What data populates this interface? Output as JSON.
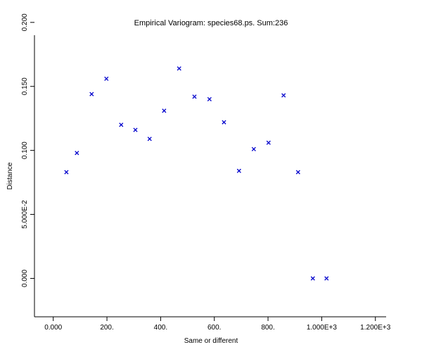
{
  "chart_data": {
    "type": "scatter",
    "title": "Empirical Variogram: species68.ps. Sum:236",
    "xlabel": "Same or different",
    "ylabel": "Distance",
    "xlim": [
      -70,
      1240
    ],
    "ylim": [
      -0.03,
      0.19
    ],
    "x_ticks": [
      0,
      200,
      400,
      600,
      800,
      1000,
      1200
    ],
    "x_tick_labels": [
      "0.000",
      "200.",
      "400.",
      "600.",
      "800.",
      "1.000E+3",
      "1.200E+3"
    ],
    "y_ticks": [
      0,
      0.05,
      0.1,
      0.15,
      0.2
    ],
    "y_tick_labels": [
      "0.000",
      "5.000E-2",
      "0.100",
      "0.150",
      "0.200"
    ],
    "marker": "x",
    "marker_color": "#0000cc",
    "points": [
      {
        "x": 49,
        "y": 0.083
      },
      {
        "x": 88,
        "y": 0.098
      },
      {
        "x": 143,
        "y": 0.144
      },
      {
        "x": 198,
        "y": 0.156
      },
      {
        "x": 253,
        "y": 0.12
      },
      {
        "x": 306,
        "y": 0.116
      },
      {
        "x": 359,
        "y": 0.109
      },
      {
        "x": 413,
        "y": 0.131
      },
      {
        "x": 469,
        "y": 0.164
      },
      {
        "x": 526,
        "y": 0.142
      },
      {
        "x": 582,
        "y": 0.14
      },
      {
        "x": 636,
        "y": 0.122
      },
      {
        "x": 692,
        "y": 0.084
      },
      {
        "x": 747,
        "y": 0.101
      },
      {
        "x": 802,
        "y": 0.106
      },
      {
        "x": 858,
        "y": 0.143
      },
      {
        "x": 912,
        "y": 0.083
      },
      {
        "x": 967,
        "y": 0.0
      },
      {
        "x": 1018,
        "y": 0.0
      }
    ]
  }
}
